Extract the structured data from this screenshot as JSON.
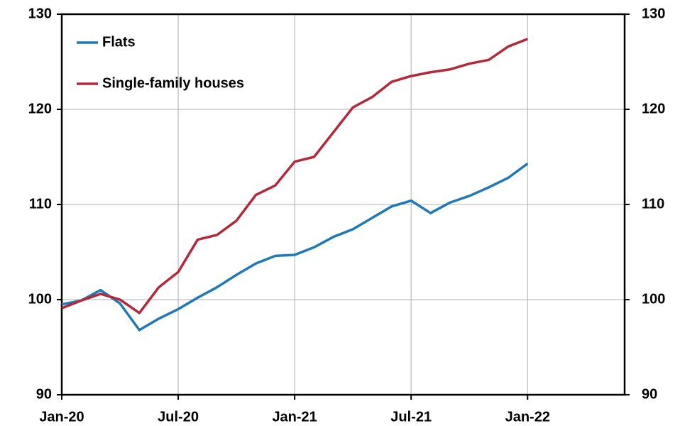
{
  "chart_data": {
    "type": "line",
    "categories": [
      "Jan-20",
      null,
      null,
      null,
      null,
      null,
      "Jul-20",
      null,
      null,
      null,
      null,
      null,
      "Jan-21",
      null,
      null,
      null,
      null,
      null,
      "Jul-21",
      null,
      null,
      null,
      null,
      null,
      "Jan-22",
      null,
      null,
      null,
      null,
      null
    ],
    "series": [
      {
        "name": "Flats",
        "color": "#1f78b8",
        "values": [
          99.5,
          99.9,
          101.0,
          99.6,
          96.8,
          98.0,
          99.0,
          100.2,
          101.3,
          102.6,
          103.8,
          104.6,
          104.7,
          105.5,
          106.6,
          107.4,
          108.6,
          109.8,
          110.4,
          109.1,
          110.2,
          110.9,
          111.8,
          112.8,
          114.3,
          null,
          null,
          null,
          null,
          null
        ]
      },
      {
        "name": "Single-family houses",
        "color": "#b3293a",
        "values": [
          99.1,
          99.9,
          100.6,
          100.0,
          98.6,
          101.3,
          102.9,
          106.3,
          106.8,
          108.3,
          111.0,
          112.0,
          114.5,
          115.0,
          117.6,
          120.2,
          121.3,
          122.9,
          123.5,
          123.9,
          124.2,
          124.8,
          125.2,
          126.6,
          127.4,
          null,
          null,
          null,
          null,
          null
        ]
      }
    ],
    "ylim": [
      90,
      130
    ],
    "yticks": [
      90,
      100,
      110,
      120,
      130
    ],
    "y2lim": [
      90,
      130
    ],
    "y2ticks": [
      90,
      100,
      110,
      120,
      130
    ],
    "grid": true,
    "legend": "upper left"
  }
}
